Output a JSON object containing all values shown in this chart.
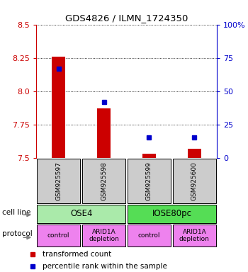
{
  "title": "GDS4826 / ILMN_1724350",
  "samples": [
    "GSM925597",
    "GSM925598",
    "GSM925599",
    "GSM925600"
  ],
  "red_values": [
    8.26,
    7.87,
    7.53,
    7.57
  ],
  "red_base": 7.5,
  "blue_values": [
    67,
    42,
    15,
    15
  ],
  "ylim_left": [
    7.5,
    8.5
  ],
  "ylim_right": [
    0,
    100
  ],
  "yticks_left": [
    7.5,
    7.75,
    8.0,
    8.25,
    8.5
  ],
  "yticks_right": [
    0,
    25,
    50,
    75,
    100
  ],
  "ytick_labels_right": [
    "0",
    "25",
    "50",
    "75",
    "100%"
  ],
  "cell_line_groups": [
    {
      "label": "OSE4",
      "cols": [
        0,
        1
      ],
      "color": "#aaeaaa"
    },
    {
      "label": "IOSE80pc",
      "cols": [
        2,
        3
      ],
      "color": "#55dd55"
    }
  ],
  "protocol_groups": [
    {
      "label": "control",
      "col": 0,
      "color": "#ee82ee"
    },
    {
      "label": "ARID1A\ndepletion",
      "col": 1,
      "color": "#ee82ee"
    },
    {
      "label": "control",
      "col": 2,
      "color": "#ee82ee"
    },
    {
      "label": "ARID1A\ndepletion",
      "col": 3,
      "color": "#ee82ee"
    }
  ],
  "cell_line_label": "cell line",
  "protocol_label": "protocol",
  "legend_red": "transformed count",
  "legend_blue": "percentile rank within the sample",
  "red_color": "#cc0000",
  "blue_color": "#0000cc",
  "sample_box_color": "#cccccc",
  "left_axis_color": "#cc0000",
  "right_axis_color": "#0000cc",
  "bar_width": 0.3
}
